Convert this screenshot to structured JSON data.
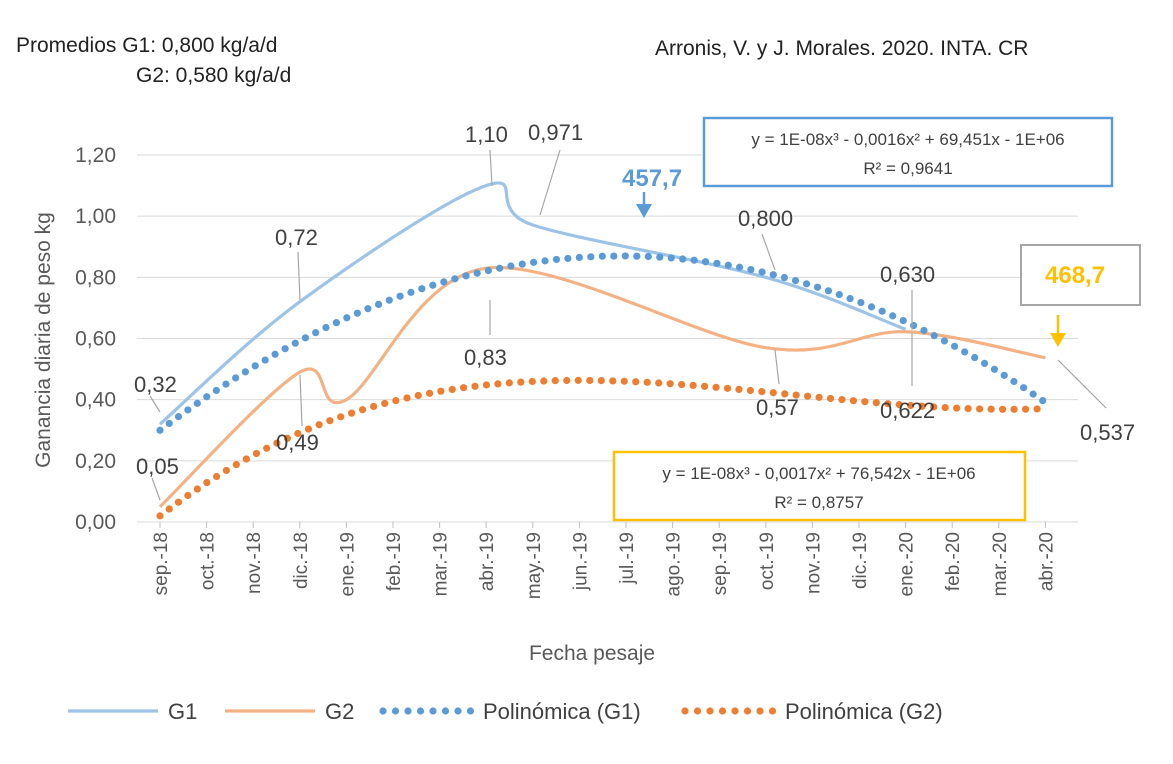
{
  "header": {
    "averages_line1": "Promedios G1: 0,800 kg/a/d",
    "averages_line2": "G2: 0,580 kg/a/d",
    "source": "Arronis, V. y J. Morales. 2020. INTA. CR"
  },
  "chart_data": {
    "type": "line",
    "xlabel": "Fecha pesaje",
    "ylabel": "Ganancia diaria de peso kg",
    "ylim": [
      0,
      1.2
    ],
    "yticks": [
      "0,00",
      "0,20",
      "0,40",
      "0,60",
      "0,80",
      "1,00",
      "1,20"
    ],
    "categories": [
      "sep.-18",
      "oct.-18",
      "nov.-18",
      "dic.-18",
      "ene.-19",
      "feb.-19",
      "mar.-19",
      "abr.-19",
      "may.-19",
      "jun.-19",
      "jul.-19",
      "ago.-19",
      "sep.-19",
      "oct.-19",
      "nov.-19",
      "dic.-19",
      "ene.-20",
      "feb.-20",
      "mar.-20",
      "abr.-20"
    ],
    "series": [
      {
        "name": "G1",
        "style": "smooth-line",
        "color": "#9dc3e6",
        "values": [
          0.32,
          null,
          null,
          0.72,
          null,
          null,
          null,
          1.1,
          0.971,
          null,
          null,
          null,
          null,
          0.8,
          null,
          null,
          0.63,
          null,
          null,
          null
        ]
      },
      {
        "name": "G2",
        "style": "smooth-line",
        "color": "#f4b183",
        "values": [
          0.05,
          null,
          null,
          0.49,
          0.4,
          null,
          null,
          0.83,
          null,
          null,
          null,
          null,
          null,
          0.57,
          null,
          null,
          0.622,
          null,
          null,
          0.537
        ]
      },
      {
        "name": "Polinómica (G1)",
        "style": "dotted",
        "color": "#5b9bd5"
      },
      {
        "name": "Polinómica (G2)",
        "style": "dotted",
        "color": "#ed7d31"
      }
    ],
    "data_labels": [
      "0,32",
      "0,72",
      "1,10",
      "0,971",
      "0,800",
      "0,630",
      "0,05",
      "0,49",
      "0,83",
      "0,57",
      "0,622",
      "0,537"
    ],
    "annotations": [
      {
        "text": "457,7",
        "color": "#5b9bd5"
      },
      {
        "text": "468,7",
        "color": "#ffc000"
      }
    ],
    "equations": [
      {
        "line1": "y = 1E-08x³ - 0,0016x² + 69,451x - 1E+06",
        "line2": "R² = 0,9641",
        "border": "#5b9bd5"
      },
      {
        "line1": "y = 1E-08x³ - 0,0017x² + 76,542x - 1E+06",
        "line2": "R² = 0,8757",
        "border": "#ffc000"
      }
    ],
    "legend_position": "bottom",
    "grid": true
  }
}
